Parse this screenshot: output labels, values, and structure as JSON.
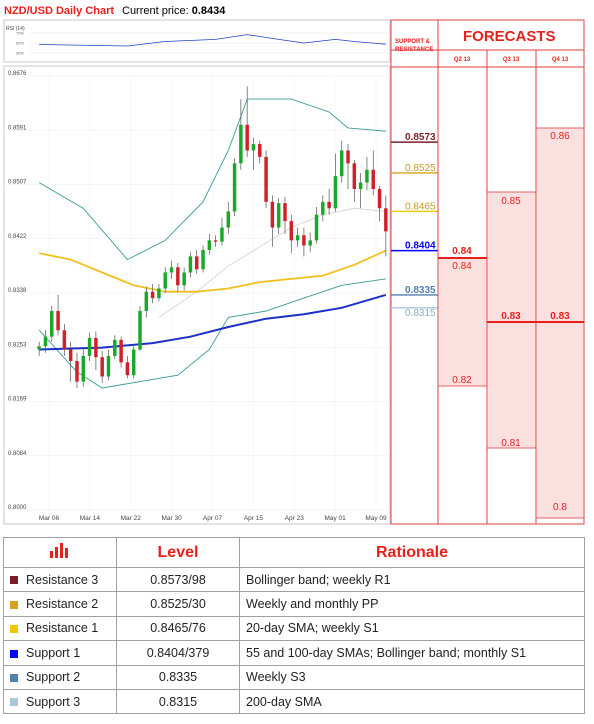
{
  "header": {
    "title": "NZD/USD Daily Chart",
    "price_label": "Current price: ",
    "price_value": "0.8434"
  },
  "rsi": {
    "label": "RSI (14)",
    "levels": [
      "70%",
      "50%",
      "30%"
    ]
  },
  "support_resistance_title": [
    "SUPPORT &",
    "RESISTANCE"
  ],
  "forecasts": {
    "title": "FORECASTS",
    "quarters": [
      "Q2 13",
      "Q3 13",
      "Q4 13"
    ],
    "q2": {
      "high": "0.84",
      "low": "0.82",
      "high_alt": "0.84"
    },
    "q3": {
      "high": "0.85",
      "mid": "0.83",
      "low": "0.81"
    },
    "q4": {
      "high": "0.86",
      "mid": "0.83",
      "low": "0.8"
    }
  },
  "colors": {
    "accent": "#e8201c",
    "r3": "#7b1f27",
    "r2": "#d8a020",
    "r1": "#f0c800",
    "s1": "#0000ff",
    "s2": "#5080b0",
    "s3": "#a8c8dc"
  },
  "chart_data": {
    "type": "candlestick",
    "ylim": [
      0.8,
      0.8676
    ],
    "yticks": [
      "0.8676",
      "0.8591",
      "0.8507",
      "0.8422",
      "0.8338",
      "0.8253",
      "0.8169",
      "0.8084",
      "0.8000"
    ],
    "xticks": [
      "Mar 06",
      "Mar 14",
      "Mar 22",
      "Mar 30",
      "Apr 07",
      "Apr 15",
      "Apr 23",
      "May 01",
      "May 09"
    ],
    "levels": [
      {
        "label": "0.8573",
        "value": 0.8573,
        "color": "#7b1f27"
      },
      {
        "label": "0.8525",
        "value": 0.8525,
        "color": "#d8a020"
      },
      {
        "label": "0.8465",
        "value": 0.8465,
        "color": "#f0c800"
      },
      {
        "label": "0.8404",
        "value": 0.8404,
        "color": "#0000ff"
      },
      {
        "label": "0.8335",
        "value": 0.8335,
        "color": "#5080b0"
      },
      {
        "label": "0.8315",
        "value": 0.8315,
        "color": "#a8c8dc"
      }
    ],
    "candles": [
      [
        0.825,
        0.8255,
        0.824,
        0.8262
      ],
      [
        0.8255,
        0.827,
        0.8245,
        0.828
      ],
      [
        0.827,
        0.831,
        0.8262,
        0.8318
      ],
      [
        0.831,
        0.828,
        0.8272,
        0.8335
      ],
      [
        0.828,
        0.825,
        0.824,
        0.829
      ],
      [
        0.825,
        0.8232,
        0.82,
        0.8262
      ],
      [
        0.8232,
        0.82,
        0.819,
        0.8245
      ],
      [
        0.82,
        0.824,
        0.8192,
        0.8252
      ],
      [
        0.824,
        0.8268,
        0.8232,
        0.8276
      ],
      [
        0.8268,
        0.8238,
        0.8218,
        0.8278
      ],
      [
        0.8238,
        0.8208,
        0.8198,
        0.8248
      ],
      [
        0.8208,
        0.824,
        0.8202,
        0.825
      ],
      [
        0.824,
        0.8265,
        0.8235,
        0.8272
      ],
      [
        0.8265,
        0.823,
        0.8222,
        0.827
      ],
      [
        0.823,
        0.821,
        0.8205,
        0.824
      ],
      [
        0.821,
        0.825,
        0.8205,
        0.8258
      ],
      [
        0.825,
        0.831,
        0.8248,
        0.8318
      ],
      [
        0.831,
        0.834,
        0.83,
        0.8348
      ],
      [
        0.834,
        0.833,
        0.8322,
        0.8352
      ],
      [
        0.833,
        0.8345,
        0.8325,
        0.8352
      ],
      [
        0.8345,
        0.837,
        0.8338,
        0.8378
      ],
      [
        0.837,
        0.8378,
        0.836,
        0.8388
      ],
      [
        0.8378,
        0.835,
        0.834,
        0.8385
      ],
      [
        0.835,
        0.837,
        0.8342,
        0.8378
      ],
      [
        0.837,
        0.8395,
        0.8362,
        0.8402
      ],
      [
        0.8395,
        0.8375,
        0.8368,
        0.8405
      ],
      [
        0.8375,
        0.8405,
        0.837,
        0.8412
      ],
      [
        0.8405,
        0.842,
        0.8398,
        0.843
      ],
      [
        0.842,
        0.8418,
        0.841,
        0.8428
      ],
      [
        0.8418,
        0.844,
        0.8412,
        0.8455
      ],
      [
        0.844,
        0.8465,
        0.843,
        0.848
      ],
      [
        0.8465,
        0.854,
        0.8458,
        0.8548
      ],
      [
        0.854,
        0.86,
        0.853,
        0.864
      ],
      [
        0.86,
        0.856,
        0.855,
        0.866
      ],
      [
        0.856,
        0.857,
        0.853,
        0.858
      ],
      [
        0.857,
        0.855,
        0.854,
        0.8575
      ],
      [
        0.855,
        0.848,
        0.847,
        0.856
      ],
      [
        0.848,
        0.844,
        0.841,
        0.849
      ],
      [
        0.844,
        0.8478,
        0.843,
        0.8486
      ],
      [
        0.8478,
        0.845,
        0.843,
        0.8488
      ],
      [
        0.845,
        0.842,
        0.84,
        0.846
      ],
      [
        0.842,
        0.8428,
        0.841,
        0.844
      ],
      [
        0.8428,
        0.8412,
        0.8395,
        0.844
      ],
      [
        0.8412,
        0.842,
        0.8402,
        0.8432
      ],
      [
        0.842,
        0.846,
        0.8415,
        0.8472
      ],
      [
        0.846,
        0.848,
        0.845,
        0.849
      ],
      [
        0.848,
        0.847,
        0.846,
        0.85
      ],
      [
        0.847,
        0.852,
        0.8465,
        0.8555
      ],
      [
        0.852,
        0.856,
        0.851,
        0.8575
      ],
      [
        0.856,
        0.854,
        0.85,
        0.857
      ],
      [
        0.854,
        0.85,
        0.848,
        0.8545
      ],
      [
        0.85,
        0.851,
        0.847,
        0.8525
      ],
      [
        0.851,
        0.853,
        0.8498,
        0.855
      ],
      [
        0.853,
        0.85,
        0.849,
        0.856
      ],
      [
        0.85,
        0.847,
        0.845,
        0.8505
      ],
      [
        0.847,
        0.8434,
        0.8395,
        0.849
      ]
    ],
    "bollinger_upper": [
      [
        0,
        0.851
      ],
      [
        7,
        0.847
      ],
      [
        14,
        0.839
      ],
      [
        20,
        0.842
      ],
      [
        26,
        0.848
      ],
      [
        30,
        0.856
      ],
      [
        33,
        0.864
      ],
      [
        40,
        0.864
      ],
      [
        46,
        0.862
      ],
      [
        49,
        0.8595
      ],
      [
        55,
        0.859
      ]
    ],
    "bollinger_lower": [
      [
        0,
        0.828
      ],
      [
        6,
        0.8215
      ],
      [
        10,
        0.819
      ],
      [
        16,
        0.82
      ],
      [
        22,
        0.821
      ],
      [
        27,
        0.825
      ],
      [
        30,
        0.83
      ],
      [
        36,
        0.831
      ],
      [
        42,
        0.833
      ],
      [
        48,
        0.835
      ],
      [
        55,
        0.836
      ]
    ],
    "sma20": [
      [
        19,
        0.83
      ],
      [
        25,
        0.834
      ],
      [
        30,
        0.838
      ],
      [
        35,
        0.841
      ],
      [
        40,
        0.844
      ],
      [
        45,
        0.846
      ],
      [
        50,
        0.847
      ],
      [
        55,
        0.8465
      ]
    ],
    "sma55": [
      [
        0,
        0.84
      ],
      [
        5,
        0.839
      ],
      [
        10,
        0.837
      ],
      [
        15,
        0.835
      ],
      [
        20,
        0.834
      ],
      [
        25,
        0.834
      ],
      [
        30,
        0.8345
      ],
      [
        35,
        0.8355
      ],
      [
        40,
        0.836
      ],
      [
        45,
        0.8365
      ],
      [
        50,
        0.8382
      ],
      [
        55,
        0.8404
      ]
    ],
    "sma200": [
      [
        0,
        0.825
      ],
      [
        10,
        0.8253
      ],
      [
        18,
        0.826
      ],
      [
        24,
        0.827
      ],
      [
        30,
        0.8285
      ],
      [
        36,
        0.8298
      ],
      [
        42,
        0.8305
      ],
      [
        48,
        0.8315
      ],
      [
        55,
        0.8335
      ]
    ],
    "rsi_values": [
      [
        0,
        0.45
      ],
      [
        8,
        0.42
      ],
      [
        14,
        0.4
      ],
      [
        20,
        0.55
      ],
      [
        28,
        0.62
      ],
      [
        33,
        0.78
      ],
      [
        38,
        0.62
      ],
      [
        42,
        0.5
      ],
      [
        47,
        0.62
      ],
      [
        50,
        0.55
      ],
      [
        55,
        0.46
      ]
    ]
  },
  "table": {
    "headers": [
      "Level",
      "Rationale"
    ],
    "rows": [
      {
        "name": "Resistance 3",
        "level": "0.8573/98",
        "rationale": "Bollinger band; weekly R1",
        "color": "#7b1f27"
      },
      {
        "name": "Resistance 2",
        "level": "0.8525/30",
        "rationale": "Weekly and monthly PP",
        "color": "#d8a020"
      },
      {
        "name": "Resistance 1",
        "level": "0.8465/76",
        "rationale": "20-day SMA; weekly S1",
        "color": "#f0c800"
      },
      {
        "name": "Support 1",
        "level": "0.8404/379",
        "rationale": "55 and 100-day SMAs; Bollinger band; monthly S1",
        "color": "#0000ff"
      },
      {
        "name": "Support 2",
        "level": "0.8335",
        "rationale": "Weekly S3",
        "color": "#5080b0"
      },
      {
        "name": "Support 3",
        "level": "0.8315",
        "rationale": "200-day SMA",
        "color": "#a8c8dc"
      }
    ]
  }
}
